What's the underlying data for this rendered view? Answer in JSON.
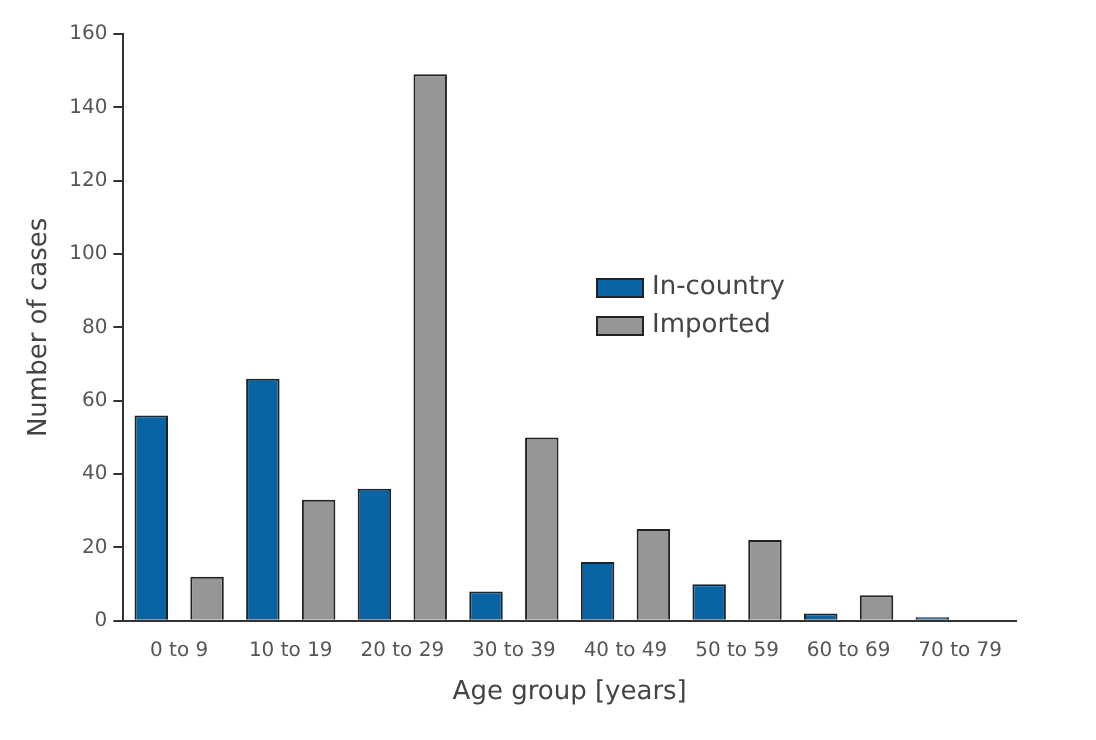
{
  "chart_data": {
    "type": "bar",
    "xlabel": "Age group [years]",
    "ylabel": "Number of cases",
    "categories": [
      "0 to 9",
      "10 to 19",
      "20 to 29",
      "30 to 39",
      "40 to 49",
      "50 to 59",
      "60 to 69",
      "70 to 79"
    ],
    "series": [
      {
        "name": "In-country",
        "color": "#0a64a4",
        "values": [
          56,
          66,
          36,
          8,
          16,
          10,
          2,
          1
        ]
      },
      {
        "name": "Imported",
        "color": "#969696",
        "values": [
          12,
          33,
          149,
          50,
          25,
          22,
          7,
          0
        ]
      }
    ],
    "ylim": [
      0,
      160
    ],
    "yticks": [
      0,
      20,
      40,
      60,
      80,
      100,
      120,
      140,
      160
    ],
    "grid": false,
    "legend": "right"
  }
}
